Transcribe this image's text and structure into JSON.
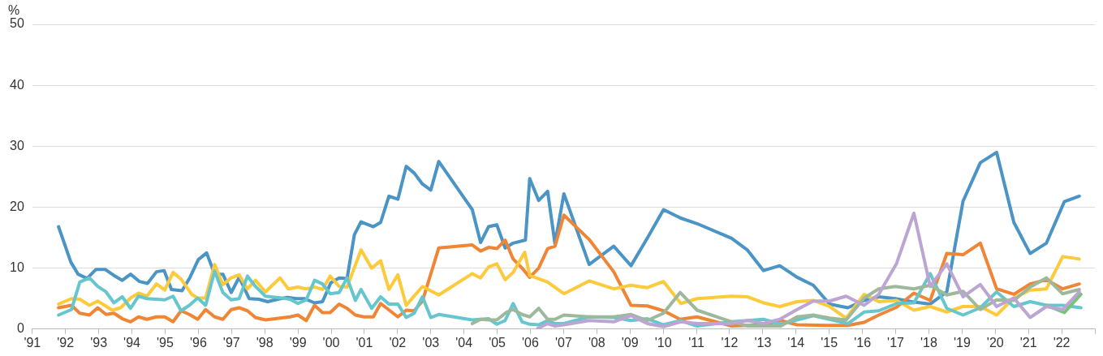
{
  "chart_data": {
    "type": "line",
    "ylabel": "%",
    "grid": "y",
    "legend": false,
    "marker": "none",
    "line_style": "solid",
    "xlim": [
      1991,
      2023
    ],
    "xticks": [
      {
        "value": 1991,
        "label": "'91"
      },
      {
        "value": 1992,
        "label": "'92"
      },
      {
        "value": 1993,
        "label": "'93"
      },
      {
        "value": 1994,
        "label": "'94"
      },
      {
        "value": 1995,
        "label": "'95"
      },
      {
        "value": 1996,
        "label": "'96"
      },
      {
        "value": 1997,
        "label": "'97"
      },
      {
        "value": 1998,
        "label": "'98"
      },
      {
        "value": 1999,
        "label": "'99"
      },
      {
        "value": 2000,
        "label": "'00"
      },
      {
        "value": 2001,
        "label": "'01"
      },
      {
        "value": 2002,
        "label": "'02"
      },
      {
        "value": 2003,
        "label": "'03"
      },
      {
        "value": 2004,
        "label": "'04"
      },
      {
        "value": 2005,
        "label": "'05"
      },
      {
        "value": 2006,
        "label": "'06"
      },
      {
        "value": 2007,
        "label": "'07"
      },
      {
        "value": 2008,
        "label": "'08"
      },
      {
        "value": 2009,
        "label": "'09"
      },
      {
        "value": 2010,
        "label": "'10"
      },
      {
        "value": 2011,
        "label": "'11"
      },
      {
        "value": 2012,
        "label": "'12"
      },
      {
        "value": 2013,
        "label": "'13"
      },
      {
        "value": 2014,
        "label": "'14"
      },
      {
        "value": 2015,
        "label": "'15"
      },
      {
        "value": 2016,
        "label": "'16"
      },
      {
        "value": 2017,
        "label": "'17"
      },
      {
        "value": 2018,
        "label": "'18"
      },
      {
        "value": 2019,
        "label": "'19"
      },
      {
        "value": 2020,
        "label": "'20"
      },
      {
        "value": 2021,
        "label": "'21"
      },
      {
        "value": 2022,
        "label": "'22"
      },
      {
        "value": 2023,
        "label": null
      }
    ],
    "ylim": [
      0,
      50
    ],
    "yticks": [
      0,
      10,
      20,
      30,
      40,
      50
    ],
    "series": [
      {
        "color": "#bca5d3",
        "x": [
          2006.22,
          2006.52,
          2006.74,
          2007.01,
          2007.77,
          2008.51,
          2009.03,
          2009.52,
          2010.01,
          2010.53,
          2011.02,
          2012.06,
          2012.53,
          2013.02,
          2013.51,
          2014.03,
          2014.52,
          2015.01,
          2015.51,
          2016.05,
          2016.49,
          2017.03,
          2017.55,
          2018.04,
          2018.54,
          2019.03,
          2019.55,
          2020.04,
          2020.56,
          2021.05,
          2021.54,
          2022.03,
          2022.53
        ],
        "values": [
          0.1,
          0.9,
          0.5,
          0.7,
          1.4,
          1.2,
          2.2,
          0.9,
          0.4,
          1.2,
          0.9,
          0.9,
          1.4,
          0.9,
          1.6,
          3.2,
          4.6,
          4.6,
          5.4,
          3.9,
          5.7,
          10.8,
          19,
          7,
          10.7,
          5.3,
          7.3,
          3.7,
          5.1,
          1.9,
          3.7,
          3.2,
          6.1
        ]
      },
      {
        "color": "#9db89a",
        "x": [
          2004.25,
          2004.5,
          2004.74,
          2004.99,
          2005.29,
          2005.48,
          2005.75,
          2005.98,
          2006.25,
          2006.52,
          2006.74,
          2007.01,
          2007.77,
          2008.51,
          2009.03,
          2009.52,
          2010.01,
          2010.51,
          2011.02,
          2012.06,
          2012.55,
          2013.54,
          2014.03,
          2014.52,
          2015.01,
          2015.51,
          2016.05,
          2016.49,
          2016.99,
          2017.55,
          2018.04,
          2018.54,
          2019.03,
          2019.55,
          2020.04,
          2020.56,
          2021.05,
          2021.54,
          2022.03,
          2022.53
        ],
        "values": [
          0.9,
          1.6,
          1.5,
          1.5,
          2.8,
          3.2,
          2.4,
          2,
          3.4,
          1.6,
          1.6,
          2.3,
          2,
          2,
          2.4,
          1.4,
          2.6,
          6,
          3.1,
          1.2,
          0.5,
          0.5,
          2,
          2.3,
          1.8,
          1.5,
          5.1,
          6.6,
          7,
          6.6,
          7.2,
          5.6,
          6.2,
          3.2,
          4.8,
          4.7,
          6.9,
          8.4,
          5.8,
          6.5
        ]
      },
      {
        "color": "#78c27a",
        "x": [
          2021.54,
          2022.08,
          2022.58
        ],
        "values": [
          3.9,
          2.7,
          5.7
        ]
      },
      {
        "color": "#66c6ce",
        "x": [
          1991.79,
          1992.18,
          1992.43,
          1992.72,
          1992.97,
          1993.22,
          1993.46,
          1993.71,
          1993.96,
          1994.2,
          1994.45,
          1994.74,
          1994.99,
          1995.24,
          1995.48,
          1995.73,
          1995.98,
          1996.22,
          1996.49,
          1996.74,
          1996.99,
          1997.23,
          1997.48,
          1997.72,
          1998.02,
          1998.51,
          1998.76,
          1999,
          1999.25,
          1999.5,
          1999.74,
          1999.97,
          2000.24,
          2000.48,
          2000.73,
          2000.9,
          2001.22,
          2001.49,
          2001.74,
          2002.01,
          2002.26,
          2002.5,
          2002.75,
          2003,
          2003.24,
          2004.25,
          2004.74,
          2004.99,
          2005.24,
          2005.48,
          2005.75,
          2005.98,
          2006.25,
          2006.52,
          2006.74,
          2007.01,
          2007.77,
          2008.51,
          2009.03,
          2009.52,
          2010.01,
          2010.53,
          2011.02,
          2012.06,
          2013.02,
          2013.54,
          2014.03,
          2014.52,
          2015.01,
          2015.56,
          2016.05,
          2016.49,
          2017.03,
          2017.55,
          2018.04,
          2018.54,
          2019.03,
          2019.55,
          2020.04,
          2020.56,
          2021.05,
          2021.54,
          2022.03,
          2022.58
        ],
        "values": [
          2.3,
          3.2,
          7.7,
          8.4,
          7,
          6.1,
          4.3,
          5.3,
          3.4,
          5.4,
          5,
          4.9,
          4.8,
          5.4,
          3,
          3.9,
          5.1,
          3.9,
          9.5,
          6,
          4.8,
          5,
          8.7,
          7,
          5.4,
          5.1,
          4.9,
          4.2,
          4.8,
          8,
          7.4,
          5.8,
          6,
          8.4,
          4.7,
          6.5,
          3.4,
          5.3,
          4.1,
          4.1,
          1.9,
          2.6,
          5.3,
          1.9,
          2.4,
          1.5,
          1.7,
          0.8,
          1.4,
          4.2,
          1.2,
          0.8,
          0.7,
          1.4,
          0.9,
          0.9,
          2,
          1.9,
          1.4,
          1.7,
          0.7,
          1.4,
          0.5,
          1.2,
          1.6,
          0.8,
          1.5,
          2.2,
          1.6,
          0.9,
          2.8,
          3,
          4.2,
          4.3,
          9.1,
          3.4,
          2.3,
          3.5,
          6.1,
          3.7,
          4.5,
          3.9,
          3.9,
          3.5
        ]
      },
      {
        "color": "#fdca3c",
        "x": [
          1991.79,
          1992.18,
          1992.43,
          1992.72,
          1992.97,
          1993.41,
          1993.66,
          1993.96,
          1994.2,
          1994.45,
          1994.74,
          1994.99,
          1995.24,
          1995.48,
          1995.8,
          1995.98,
          1996.22,
          1996.49,
          1996.74,
          1996.99,
          1997.23,
          1997.48,
          1997.72,
          1998.02,
          1998.27,
          1998.46,
          1998.71,
          1999,
          1999.25,
          1999.5,
          1999.74,
          1999.97,
          2000.24,
          2000.48,
          2000.9,
          2001.22,
          2001.49,
          2001.74,
          2002.01,
          2002.26,
          2002.75,
          2003.24,
          2004.25,
          2004.5,
          2004.74,
          2004.99,
          2005.24,
          2005.48,
          2005.83,
          2005.98,
          2006.52,
          2007.01,
          2007.77,
          2008.51,
          2009.03,
          2009.52,
          2010.01,
          2010.53,
          2011.02,
          2012.06,
          2012.53,
          2013.02,
          2013.51,
          2014.03,
          2014.52,
          2015.01,
          2015.51,
          2016.05,
          2016.49,
          2017.03,
          2017.55,
          2018.04,
          2018.54,
          2019.03,
          2019.55,
          2020.04,
          2020.56,
          2021.05,
          2021.54,
          2022.03,
          2022.53
        ],
        "values": [
          4.1,
          5,
          4.9,
          3.9,
          4.6,
          3.1,
          3.5,
          5.1,
          5.9,
          5.4,
          7.4,
          6.4,
          9.3,
          8.2,
          5.7,
          5.1,
          5.1,
          10.6,
          7.3,
          8.4,
          8.9,
          6.6,
          8,
          6.1,
          7.4,
          8.4,
          6.6,
          6.9,
          6.6,
          6.9,
          6.5,
          8.7,
          7,
          6.9,
          13,
          10,
          11.2,
          6.5,
          8.9,
          3.9,
          7,
          5.6,
          9.1,
          8.4,
          10.2,
          10.7,
          8.1,
          9.3,
          12.6,
          8.8,
          7.7,
          5.8,
          7.9,
          6.6,
          7.2,
          6.8,
          7.8,
          4.2,
          5,
          5.4,
          5.3,
          4.3,
          3.7,
          4.5,
          4.7,
          3.7,
          1.8,
          5.7,
          4.5,
          4.7,
          3.1,
          3.7,
          2.8,
          3.7,
          3.7,
          2.3,
          5.1,
          6.4,
          6.6,
          11.9,
          11.5
        ]
      },
      {
        "color": "#ef8535",
        "x": [
          1991.79,
          1992.18,
          1992.43,
          1992.72,
          1992.97,
          1993.22,
          1993.46,
          1993.71,
          1993.96,
          1994.2,
          1994.45,
          1994.74,
          1994.99,
          1995.24,
          1995.48,
          1995.73,
          1995.98,
          1996.22,
          1996.49,
          1996.74,
          1996.99,
          1997.23,
          1997.48,
          1997.72,
          1998.02,
          1998.76,
          1999,
          1999.25,
          1999.5,
          1999.74,
          1999.97,
          2000.24,
          2000.48,
          2000.73,
          2000.98,
          2001.27,
          2001.49,
          2002.01,
          2002.26,
          2002.5,
          2002.75,
          2003.24,
          2004.25,
          2004.5,
          2004.74,
          2004.99,
          2005.24,
          2005.48,
          2005.75,
          2005.98,
          2006.25,
          2006.52,
          2006.74,
          2007.01,
          2007.77,
          2008.51,
          2009.03,
          2009.52,
          2010.01,
          2010.51,
          2011.02,
          2012.06,
          2013.04,
          2013.54,
          2014.03,
          2015.01,
          2015.56,
          2016.05,
          2016.49,
          2017.03,
          2017.55,
          2018.04,
          2018.54,
          2019.03,
          2019.55,
          2020.04,
          2020.56,
          2021.05,
          2021.54,
          2022.03,
          2022.53
        ],
        "values": [
          3.5,
          3.9,
          2.6,
          2.3,
          3.5,
          2.4,
          2.6,
          1.7,
          1.2,
          2,
          1.6,
          2,
          2,
          1.2,
          3,
          2.4,
          1.6,
          3.2,
          2,
          1.6,
          3.2,
          3.5,
          3,
          1.9,
          1.5,
          2,
          2.3,
          1.4,
          3.9,
          2.7,
          2.7,
          4.1,
          3.4,
          2.3,
          2,
          2,
          4.2,
          2,
          3.1,
          3,
          4.6,
          13.3,
          13.8,
          12.8,
          13.4,
          13.2,
          14.6,
          11.5,
          10,
          8.5,
          10,
          13.2,
          13.6,
          18.7,
          14.7,
          9.4,
          3.9,
          3.8,
          3,
          1.6,
          2,
          0.5,
          0.7,
          1.4,
          0.7,
          0.6,
          0.6,
          1.1,
          2.3,
          3.6,
          5.9,
          4.7,
          12.4,
          12.2,
          14.1,
          6.6,
          5.7,
          7.4,
          8.1,
          6.6,
          7.4
        ]
      },
      {
        "color": "#4a94c6",
        "x": [
          1991.79,
          1992.16,
          1992.38,
          1992.65,
          1992.92,
          1993.19,
          1993.46,
          1993.71,
          1993.96,
          1994.23,
          1994.47,
          1994.74,
          1994.97,
          1995.19,
          1995.51,
          1995.75,
          1996,
          1996.25,
          1996.49,
          1996.74,
          1996.99,
          1997.23,
          1997.53,
          1997.82,
          1998.09,
          1998.39,
          1998.68,
          1998.96,
          1999.2,
          1999.5,
          1999.74,
          1999.99,
          2000.24,
          2000.48,
          2000.7,
          2000.9,
          2001.27,
          2001.49,
          2001.74,
          2002.01,
          2002.26,
          2002.5,
          2002.75,
          2003,
          2003.24,
          2004.25,
          2004.5,
          2004.74,
          2004.99,
          2005.24,
          2005.48,
          2005.85,
          2005.98,
          2006.25,
          2006.52,
          2006.74,
          2007.01,
          2007.77,
          2008.51,
          2009.03,
          2009.52,
          2010.01,
          2010.53,
          2011.02,
          2012.06,
          2012.53,
          2013.02,
          2013.51,
          2014.03,
          2014.52,
          2015.01,
          2015.56,
          2016.05,
          2016.49,
          2016.99,
          2017.48,
          2018.04,
          2018.54,
          2019.03,
          2019.55,
          2020.04,
          2020.56,
          2021.05,
          2021.54,
          2022.08,
          2022.53
        ],
        "values": [
          16.8,
          11,
          9,
          8.3,
          9.8,
          9.8,
          8.8,
          8,
          9,
          7.8,
          7.5,
          9.4,
          9.6,
          6.5,
          6.3,
          8.5,
          11.4,
          12.5,
          9,
          9,
          6,
          8.5,
          5,
          4.9,
          4.5,
          4.9,
          5.2,
          5,
          5,
          4.3,
          4.5,
          7.6,
          8.4,
          8.3,
          15.5,
          17.6,
          16.8,
          17.5,
          21.8,
          21.3,
          26.7,
          25.6,
          23.8,
          22.8,
          27.5,
          19.6,
          14.2,
          16.8,
          17.1,
          13.3,
          14.1,
          14.6,
          24.7,
          21.1,
          22.6,
          14,
          22.2,
          10.6,
          13.6,
          10.4,
          14.9,
          19.6,
          18.2,
          17.3,
          14.9,
          13,
          9.6,
          10.4,
          8.5,
          7.2,
          4.1,
          3.5,
          4.7,
          5.3,
          5,
          4.5,
          4.1,
          6.1,
          21,
          27.3,
          29,
          17.5,
          12.4,
          14.1,
          20.9,
          21.8
        ]
      }
    ]
  }
}
